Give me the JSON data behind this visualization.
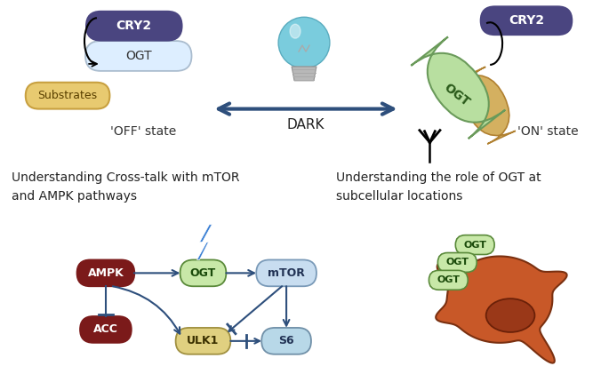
{
  "bg_color": "#ffffff",
  "cry2_color": "#4a4580",
  "ogt_off_color": "#ddeeff",
  "ogt_off_edge": "#aabcce",
  "ogt_on_color": "#b8dfa0",
  "ogt_on_edge": "#6a9a5a",
  "substrates_fill": "#e8ca70",
  "substrates_edge": "#c8a040",
  "arrow_color": "#2e4f7c",
  "ampk_color": "#7b1a1a",
  "ogt_green_color": "#c8e8a8",
  "ogt_green_edge": "#5a8a3a",
  "mtor_color": "#c8ddf0",
  "mtor_edge": "#7a9ab8",
  "ulk1_color": "#e0d080",
  "ulk1_edge": "#a09040",
  "s6_color": "#b8d8e8",
  "s6_edge": "#7090a8",
  "cell_color": "#c85828",
  "nucleus_color": "#9a3818",
  "lightning_color": "#3a7fd4",
  "ogt_small_fill": "#c8e8a8",
  "ogt_small_edge": "#5a8a3a",
  "bulb_color": "#7accdd",
  "bulb_base": "#b8b8b8",
  "text_off_state": "'OFF' state",
  "text_on_state": "'ON' state",
  "text_dark": "DARK",
  "text_cross_talk": "Understanding Cross-talk with mTOR\nand AMPK pathways",
  "text_role": "Understanding the role of OGT at\nsubcellular locations"
}
